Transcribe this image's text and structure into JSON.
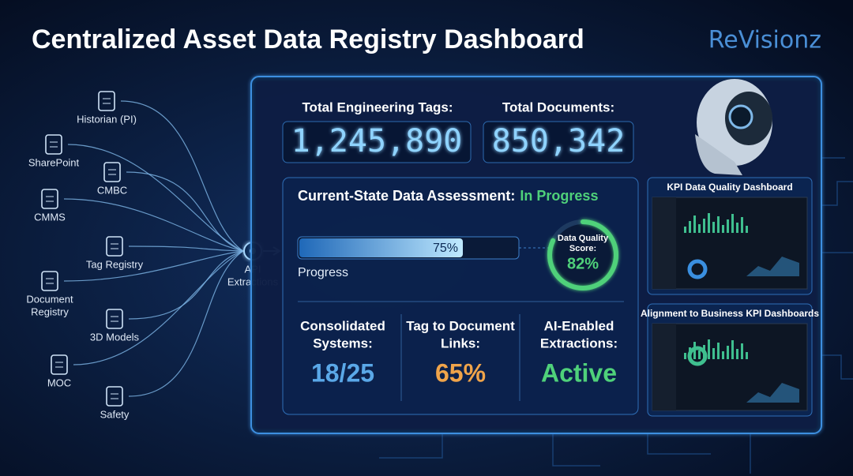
{
  "header": {
    "title": "Centralized Asset Data Registry Dashboard",
    "logo": "ReVisionz"
  },
  "sources": [
    {
      "label": [
        "Historian (PI)"
      ]
    },
    {
      "label": [
        "SharePoint"
      ]
    },
    {
      "label": [
        "CMBC"
      ]
    },
    {
      "label": [
        "CMMS"
      ]
    },
    {
      "label": [
        "Tag Registry"
      ]
    },
    {
      "label": [
        "Document",
        "Registry"
      ]
    },
    {
      "label": [
        "3D Models"
      ]
    },
    {
      "label": [
        "MOC"
      ]
    },
    {
      "label": [
        "Safety"
      ]
    }
  ],
  "api": {
    "label": [
      "API",
      "Extractions"
    ]
  },
  "totals": [
    {
      "label": "Total Engineering Tags:",
      "value": "1,245,890"
    },
    {
      "label": "Total Documents:",
      "value": "850,342"
    }
  ],
  "assessment": {
    "title": "Current-State Data Assessment:",
    "status": "In Progress",
    "progress": {
      "value": 75,
      "label": "75%",
      "caption": "Progress"
    },
    "score": {
      "title": [
        "Data Quality",
        "Score:"
      ],
      "value": 82,
      "label": "82%"
    },
    "stats": [
      {
        "label": [
          "Consolidated",
          "Systems:"
        ],
        "value": "18/25"
      },
      {
        "label": [
          "Tag to Document",
          "Links:"
        ],
        "value": "65%"
      },
      {
        "label": [
          "AI-Enabled",
          "Extractions:"
        ],
        "value": "Active"
      }
    ]
  },
  "panels": [
    {
      "title": "KPI Data Quality Dashboard"
    },
    {
      "title": "Alignment to Business KPI Dashboards"
    }
  ]
}
